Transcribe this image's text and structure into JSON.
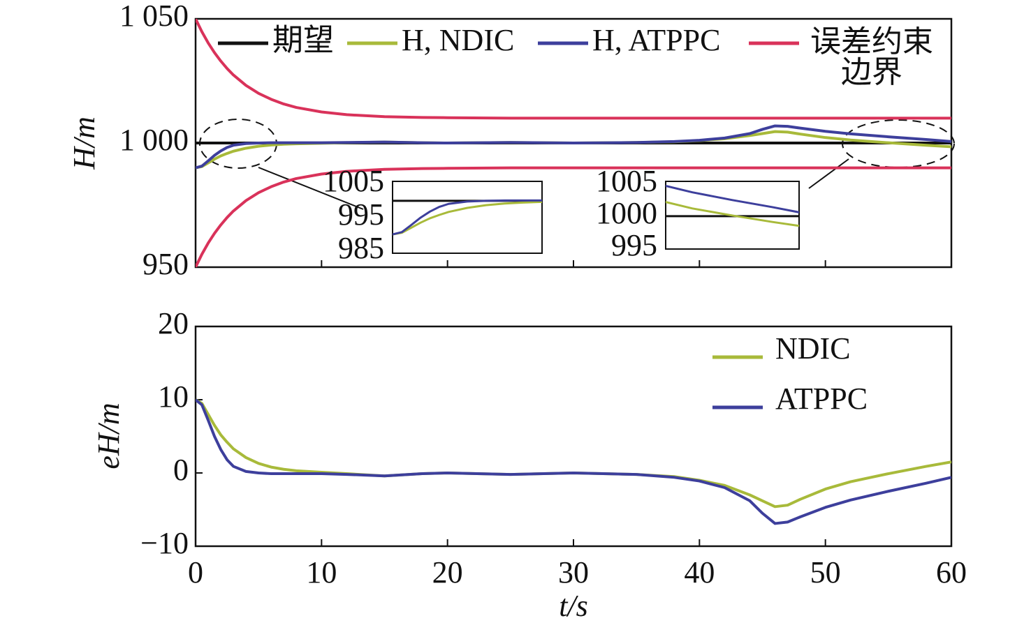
{
  "chart_data": [
    {
      "type": "line",
      "ylabel": "H/m",
      "x": [
        0,
        0.5,
        1,
        1.5,
        2,
        2.5,
        3,
        4,
        5,
        6,
        7,
        8,
        10,
        12,
        15,
        18,
        20,
        25,
        30,
        35,
        38,
        40,
        42,
        44,
        45,
        46,
        47,
        48,
        50,
        52,
        55,
        58,
        60
      ],
      "series": [
        {
          "name": "期望",
          "color": "#111111",
          "values": [
            1000,
            1000,
            1000,
            1000,
            1000,
            1000,
            1000,
            1000,
            1000,
            1000,
            1000,
            1000,
            1000,
            1000,
            1000,
            1000,
            1000,
            1000,
            1000,
            1000,
            1000,
            1000,
            1000,
            1000,
            1000,
            1000,
            1000,
            1000,
            1000,
            1000,
            1000,
            1000,
            1000
          ]
        },
        {
          "name": "H, NDIC",
          "color": "#a8ba3a",
          "values": [
            990,
            990.5,
            992,
            993.5,
            994.8,
            995.8,
            996.7,
            997.9,
            998.7,
            999.2,
            999.5,
            999.7,
            999.9,
            1000.1,
            1000.4,
            1000.1,
            1000,
            1000.2,
            1000,
            1000.2,
            1000.5,
            1001,
            1001.7,
            1003,
            1003.8,
            1004.6,
            1004.4,
            1003.6,
            1002.2,
            1001.2,
            1000.1,
            999.1,
            998.5
          ]
        },
        {
          "name": "H, ATPPC",
          "color": "#3d3f9c",
          "values": [
            990,
            990.7,
            992.8,
            995,
            996.8,
            998.2,
            999.1,
            999.8,
            1000,
            1000.1,
            1000.1,
            1000.1,
            1000.1,
            1000.2,
            1000.4,
            1000.1,
            1000,
            1000.2,
            1000,
            1000.2,
            1000.6,
            1001.1,
            1002,
            1003.8,
            1005.5,
            1006.9,
            1006.7,
            1006,
            1004.7,
            1003.7,
            1002.5,
            1001.4,
            1000.6
          ]
        },
        {
          "name": "误差约束边界",
          "color": "#d9325a",
          "values": [
            1050,
            1044.8,
            1040.3,
            1036.4,
            1033.0,
            1030.0,
            1027.4,
            1023.2,
            1020.0,
            1017.6,
            1015.7,
            1014.3,
            1012.5,
            1011.4,
            1010.6,
            1010.3,
            1010.2,
            1010,
            1010,
            1010,
            1010,
            1010,
            1010,
            1010,
            1010,
            1010,
            1010,
            1010,
            1010,
            1010,
            1010,
            1010,
            1010
          ],
          "lower": [
            950,
            955.2,
            959.7,
            963.6,
            967.0,
            970.0,
            972.6,
            976.8,
            980.0,
            982.4,
            984.3,
            985.7,
            987.5,
            988.6,
            989.4,
            989.7,
            989.8,
            990,
            990,
            990,
            990,
            990,
            990,
            990,
            990,
            990,
            990,
            990,
            990,
            990,
            990,
            990,
            990
          ]
        }
      ],
      "xlim": [
        0,
        60
      ],
      "xticks": [
        0,
        10,
        20,
        30,
        40,
        50,
        60
      ],
      "ylim": [
        950,
        1050
      ],
      "yticks": [
        {
          "value": 1050,
          "label": "1 050"
        },
        {
          "value": 1000,
          "label": "1 000"
        },
        950
      ],
      "insets": [
        {
          "xlim": [
            0,
            8
          ],
          "ylim": [
            984.4,
            1005.8
          ],
          "yticks": [
            1005,
            995,
            985
          ]
        },
        {
          "xlim": [
            50,
            60
          ],
          "ylim": [
            994.9,
            1005.4
          ],
          "yticks": [
            1005,
            1000,
            995
          ]
        }
      ]
    },
    {
      "type": "line",
      "xlabel": "t/s",
      "ylabel": "eH/m",
      "x": [
        0,
        0.5,
        1,
        1.5,
        2,
        2.5,
        3,
        4,
        5,
        6,
        7,
        8,
        10,
        12,
        15,
        18,
        20,
        25,
        30,
        35,
        38,
        40,
        42,
        44,
        45,
        46,
        47,
        48,
        50,
        52,
        55,
        58,
        60
      ],
      "series": [
        {
          "name": "NDIC",
          "color": "#a8ba3a",
          "values": [
            10,
            9.5,
            8,
            6.5,
            5.2,
            4.2,
            3.3,
            2.1,
            1.3,
            0.8,
            0.5,
            0.3,
            0.1,
            -0.1,
            -0.4,
            -0.1,
            0,
            -0.2,
            0,
            -0.2,
            -0.5,
            -1,
            -1.7,
            -3,
            -3.8,
            -4.6,
            -4.4,
            -3.6,
            -2.2,
            -1.2,
            -0.1,
            0.9,
            1.5
          ]
        },
        {
          "name": "ATPPC",
          "color": "#3d3f9c",
          "values": [
            10,
            9.3,
            7.2,
            5,
            3.2,
            1.8,
            0.9,
            0.2,
            0,
            -0.1,
            -0.1,
            -0.1,
            -0.1,
            -0.2,
            -0.4,
            -0.1,
            0,
            -0.2,
            0,
            -0.2,
            -0.6,
            -1.1,
            -2,
            -3.8,
            -5.5,
            -6.9,
            -6.7,
            -6,
            -4.7,
            -3.7,
            -2.5,
            -1.4,
            -0.6
          ]
        }
      ],
      "xlim": [
        0,
        60
      ],
      "xticks": [
        0,
        10,
        20,
        30,
        40,
        50,
        60
      ],
      "ylim": [
        -10,
        20
      ],
      "yticks": [
        20,
        10,
        0,
        {
          "value": -10,
          "label": "−10"
        }
      ]
    }
  ]
}
